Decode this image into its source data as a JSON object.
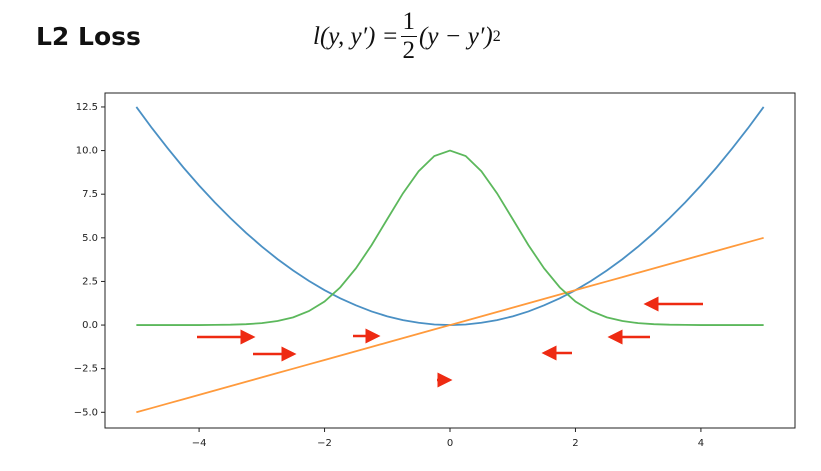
{
  "header": {
    "title": "L2 Loss",
    "formula": {
      "lhs": "l(y, y′) =",
      "numerator": "1",
      "denominator": "2",
      "rhs": "(y − y′)",
      "exponent": "2"
    }
  },
  "chart_data": {
    "type": "line",
    "x": [
      -5,
      -4.75,
      -4.5,
      -4.25,
      -4,
      -3.75,
      -3.5,
      -3.25,
      -3,
      -2.75,
      -2.5,
      -2.25,
      -2,
      -1.75,
      -1.5,
      -1.25,
      -1,
      -0.75,
      -0.5,
      -0.25,
      0,
      0.25,
      0.5,
      0.75,
      1,
      1.25,
      1.5,
      1.75,
      2,
      2.25,
      2.5,
      2.75,
      3,
      3.25,
      3.5,
      3.75,
      4,
      4.25,
      4.5,
      4.75,
      5
    ],
    "series": [
      {
        "color": "#4a90c4",
        "values": [
          12.5,
          11.28,
          10.13,
          9.03,
          8,
          7.03,
          6.13,
          5.28,
          4.5,
          3.78,
          3.13,
          2.53,
          2,
          1.53,
          1.13,
          0.78,
          0.5,
          0.28,
          0.13,
          0.03,
          0,
          0.03,
          0.13,
          0.28,
          0.5,
          0.78,
          1.13,
          1.53,
          2,
          2.53,
          3.13,
          3.78,
          4.5,
          5.28,
          6.13,
          7.03,
          8,
          9.03,
          10.13,
          11.28,
          12.5
        ]
      },
      {
        "color": "#ff9a3c",
        "values": [
          -5,
          -4.75,
          -4.5,
          -4.25,
          -4,
          -3.75,
          -3.5,
          -3.25,
          -3,
          -2.75,
          -2.5,
          -2.25,
          -2,
          -1.75,
          -1.5,
          -1.25,
          -1,
          -0.75,
          -0.5,
          -0.25,
          0,
          0.25,
          0.5,
          0.75,
          1,
          1.25,
          1.5,
          1.75,
          2,
          2.25,
          2.5,
          2.75,
          3,
          3.25,
          3.5,
          3.75,
          4,
          4.25,
          4.5,
          4.75,
          5
        ]
      },
      {
        "color": "#5cb85c",
        "values": [
          0,
          0,
          0,
          0,
          0,
          0.01,
          0.02,
          0.05,
          0.11,
          0.23,
          0.44,
          0.8,
          1.35,
          2.16,
          3.25,
          4.58,
          6.07,
          7.55,
          8.82,
          9.69,
          10,
          9.69,
          8.82,
          7.55,
          6.07,
          4.58,
          3.25,
          2.16,
          1.35,
          0.8,
          0.44,
          0.23,
          0.11,
          0.05,
          0.02,
          0.01,
          0,
          0,
          0,
          0,
          0
        ]
      }
    ],
    "xlim": [
      -5.5,
      5.5
    ],
    "xticks": [
      {
        "value": -4,
        "label": "−4"
      },
      {
        "value": -2,
        "label": "−2"
      },
      0,
      2,
      4
    ],
    "ylim": [
      -5.9,
      13.3
    ],
    "yticks": [
      {
        "value": -5,
        "label": "−5.0"
      },
      {
        "value": -2.5,
        "label": "−2.5"
      },
      {
        "value": 0,
        "label": "0.0"
      },
      {
        "value": 2.5,
        "label": "2.5"
      },
      {
        "value": 5,
        "label": "5.0"
      },
      {
        "value": 7.5,
        "label": "7.5"
      },
      {
        "value": 10,
        "label": "10.0"
      },
      {
        "value": 12.5,
        "label": "12.5"
      }
    ],
    "grid": false
  }
}
